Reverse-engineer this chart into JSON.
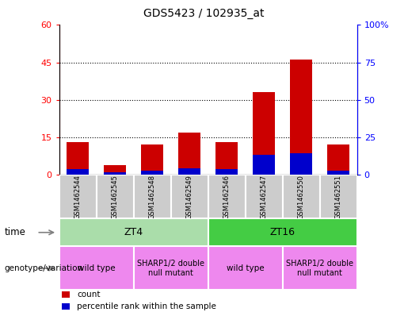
{
  "title": "GDS5423 / 102935_at",
  "samples": [
    "GSM1462544",
    "GSM1462545",
    "GSM1462548",
    "GSM1462549",
    "GSM1462546",
    "GSM1462547",
    "GSM1462550",
    "GSM1462551"
  ],
  "count_values": [
    13,
    4,
    12,
    17,
    13,
    33,
    46,
    12
  ],
  "percentile_values": [
    3.5,
    1.5,
    2.5,
    4.5,
    4.0,
    13.5,
    14.5,
    2.5
  ],
  "ylim_left": [
    0,
    60
  ],
  "ylim_right": [
    0,
    100
  ],
  "yticks_left": [
    0,
    15,
    30,
    45,
    60
  ],
  "ytick_labels_left": [
    "0",
    "15",
    "30",
    "45",
    "60"
  ],
  "yticks_right": [
    0,
    25,
    50,
    75,
    100
  ],
  "ytick_labels_right": [
    "0",
    "25",
    "50",
    "75",
    "100%"
  ],
  "bar_color": "#cc0000",
  "percentile_color": "#0000cc",
  "bg_color": "#cccccc",
  "plot_bg": "#ffffff",
  "zt4_color": "#aaddaa",
  "zt16_color": "#44cc44",
  "geno_color": "#ee88ee",
  "legend_items": [
    {
      "label": "count",
      "color": "#cc0000"
    },
    {
      "label": "percentile rank within the sample",
      "color": "#0000cc"
    }
  ]
}
